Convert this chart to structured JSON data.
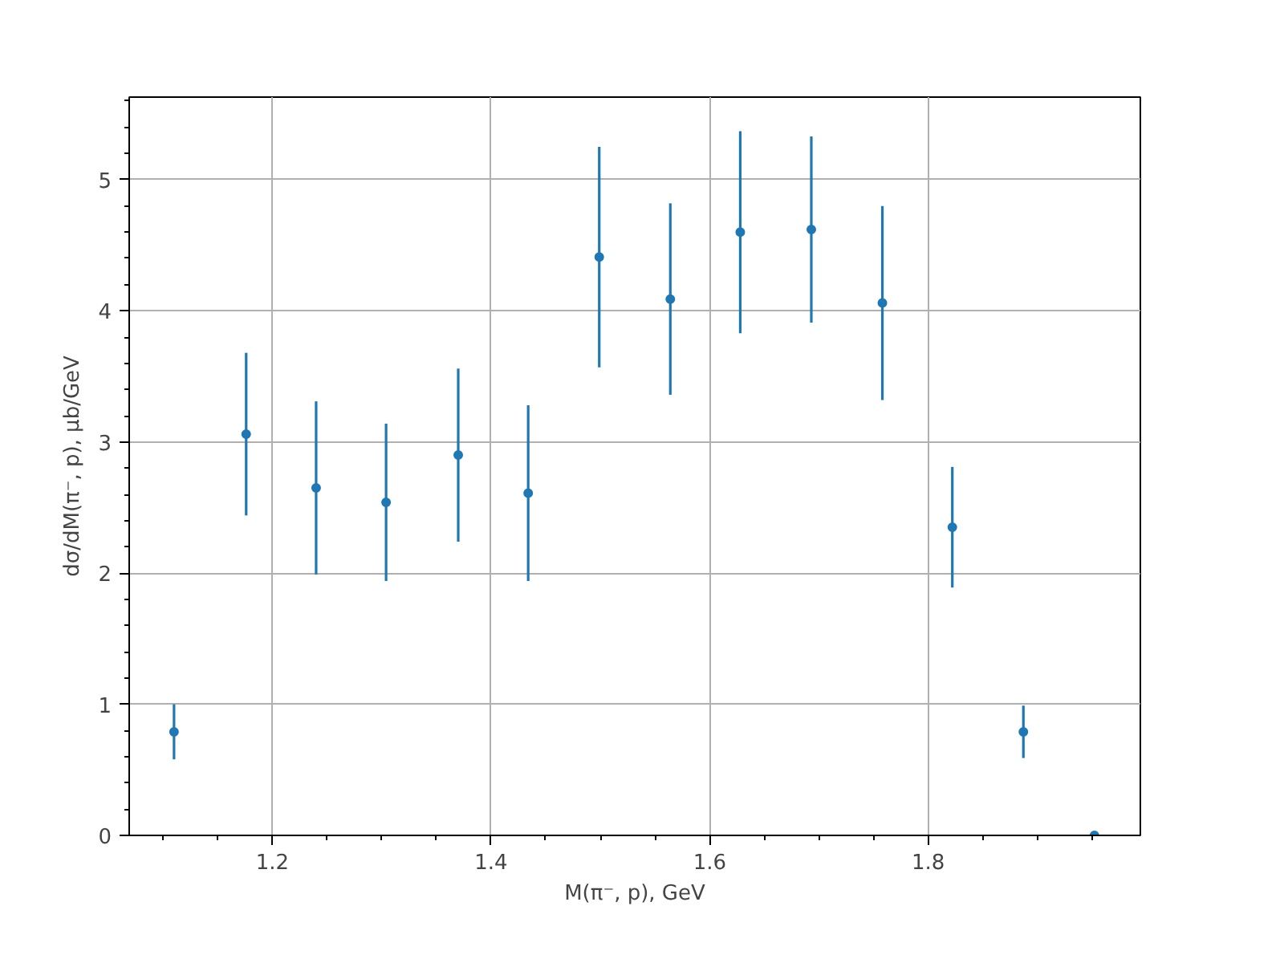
{
  "chart_data": {
    "type": "scatter",
    "xlabel": "M(π⁻, p), GeV",
    "ylabel": "dσ/dM(π⁻, p), μb/GeV",
    "x": [
      1.11,
      1.176,
      1.24,
      1.304,
      1.37,
      1.434,
      1.499,
      1.564,
      1.628,
      1.693,
      1.758,
      1.822,
      1.887,
      1.952
    ],
    "series": [
      {
        "color": "#1f77b4",
        "values": [
          0.79,
          3.06,
          2.65,
          2.54,
          2.9,
          2.61,
          4.41,
          4.09,
          4.6,
          4.62,
          4.06,
          2.35,
          0.79,
          0
        ],
        "errors": [
          0.21,
          0.62,
          0.66,
          0.6,
          0.66,
          0.67,
          0.84,
          0.73,
          0.77,
          0.71,
          0.74,
          0.46,
          0.2,
          null
        ]
      }
    ],
    "marker": "circle",
    "grid": true,
    "xlim": [
      1.069,
      1.994
    ],
    "ylim": [
      0,
      5.63
    ],
    "xticks": [
      {
        "value": 1.1,
        "label": null
      },
      {
        "value": 1.15,
        "label": null
      },
      {
        "value": 1.2,
        "label": "1.2"
      },
      {
        "value": 1.25,
        "label": null
      },
      {
        "value": 1.3,
        "label": null
      },
      {
        "value": 1.35,
        "label": null
      },
      {
        "value": 1.4,
        "label": "1.4"
      },
      {
        "value": 1.45,
        "label": null
      },
      {
        "value": 1.5,
        "label": null
      },
      {
        "value": 1.55,
        "label": null
      },
      {
        "value": 1.6,
        "label": "1.6"
      },
      {
        "value": 1.65,
        "label": null
      },
      {
        "value": 1.7,
        "label": null
      },
      {
        "value": 1.75,
        "label": null
      },
      {
        "value": 1.8,
        "label": "1.8"
      },
      {
        "value": 1.85,
        "label": null
      },
      {
        "value": 1.9,
        "label": null
      },
      {
        "value": 1.95,
        "label": null
      }
    ],
    "yticks": [
      0,
      {
        "value": 0.2,
        "label": null
      },
      {
        "value": 0.4,
        "label": null
      },
      {
        "value": 0.6,
        "label": null
      },
      {
        "value": 0.8,
        "label": null
      },
      1,
      {
        "value": 1.2,
        "label": null
      },
      {
        "value": 1.4,
        "label": null
      },
      {
        "value": 1.6,
        "label": null
      },
      {
        "value": 1.8,
        "label": null
      },
      2,
      {
        "value": 2.2,
        "label": null
      },
      {
        "value": 2.4,
        "label": null
      },
      {
        "value": 2.6,
        "label": null
      },
      {
        "value": 2.8,
        "label": null
      },
      3,
      {
        "value": 3.2,
        "label": null
      },
      {
        "value": 3.4,
        "label": null
      },
      {
        "value": 3.6,
        "label": null
      },
      {
        "value": 3.8,
        "label": null
      },
      4,
      {
        "value": 4.2,
        "label": null
      },
      {
        "value": 4.4,
        "label": null
      },
      {
        "value": 4.6,
        "label": null
      },
      {
        "value": 4.8,
        "label": null
      },
      5,
      {
        "value": 5.2,
        "label": null
      },
      {
        "value": 5.4,
        "label": null
      },
      {
        "value": 5.6,
        "label": null
      }
    ]
  }
}
